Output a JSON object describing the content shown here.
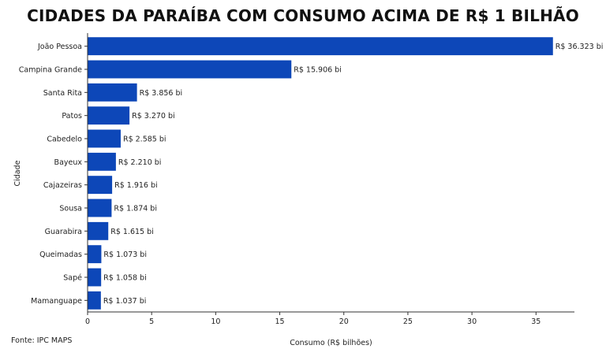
{
  "title": "CIDADES DA PARAÍBA COM CONSUMO ACIMA DE R$ 1 BILHÃO",
  "source": "Fonte: IPC MAPS",
  "colors": {
    "bar": "#0d47b8",
    "axis": "#333333",
    "text": "#222222"
  },
  "chart_data": {
    "type": "bar",
    "orientation": "horizontal",
    "title": "CIDADES DA PARAÍBA COM CONSUMO ACIMA DE R$ 1 BILHÃO",
    "xlabel": "Consumo (R$ bilhões)",
    "ylabel": "Cidade",
    "xlim": [
      0,
      38
    ],
    "xticks": [
      0,
      5,
      10,
      15,
      20,
      25,
      30,
      35
    ],
    "grid": false,
    "categories": [
      "João Pessoa",
      "Campina Grande",
      "Santa Rita",
      "Patos",
      "Cabedelo",
      "Bayeux",
      "Cajazeiras",
      "Sousa",
      "Guarabira",
      "Queimadas",
      "Sapé",
      "Mamanguape"
    ],
    "values": [
      36.323,
      15.906,
      3.856,
      3.27,
      2.585,
      2.21,
      1.916,
      1.874,
      1.615,
      1.073,
      1.058,
      1.037
    ],
    "data_labels": [
      "R$ 36.323 bi",
      "R$ 15.906 bi",
      "R$ 3.856 bi",
      "R$ 3.270 bi",
      "R$ 2.585 bi",
      "R$ 2.210 bi",
      "R$ 1.916 bi",
      "R$ 1.874 bi",
      "R$ 1.615 bi",
      "R$ 1.073 bi",
      "R$ 1.058 bi",
      "R$ 1.037 bi"
    ]
  }
}
